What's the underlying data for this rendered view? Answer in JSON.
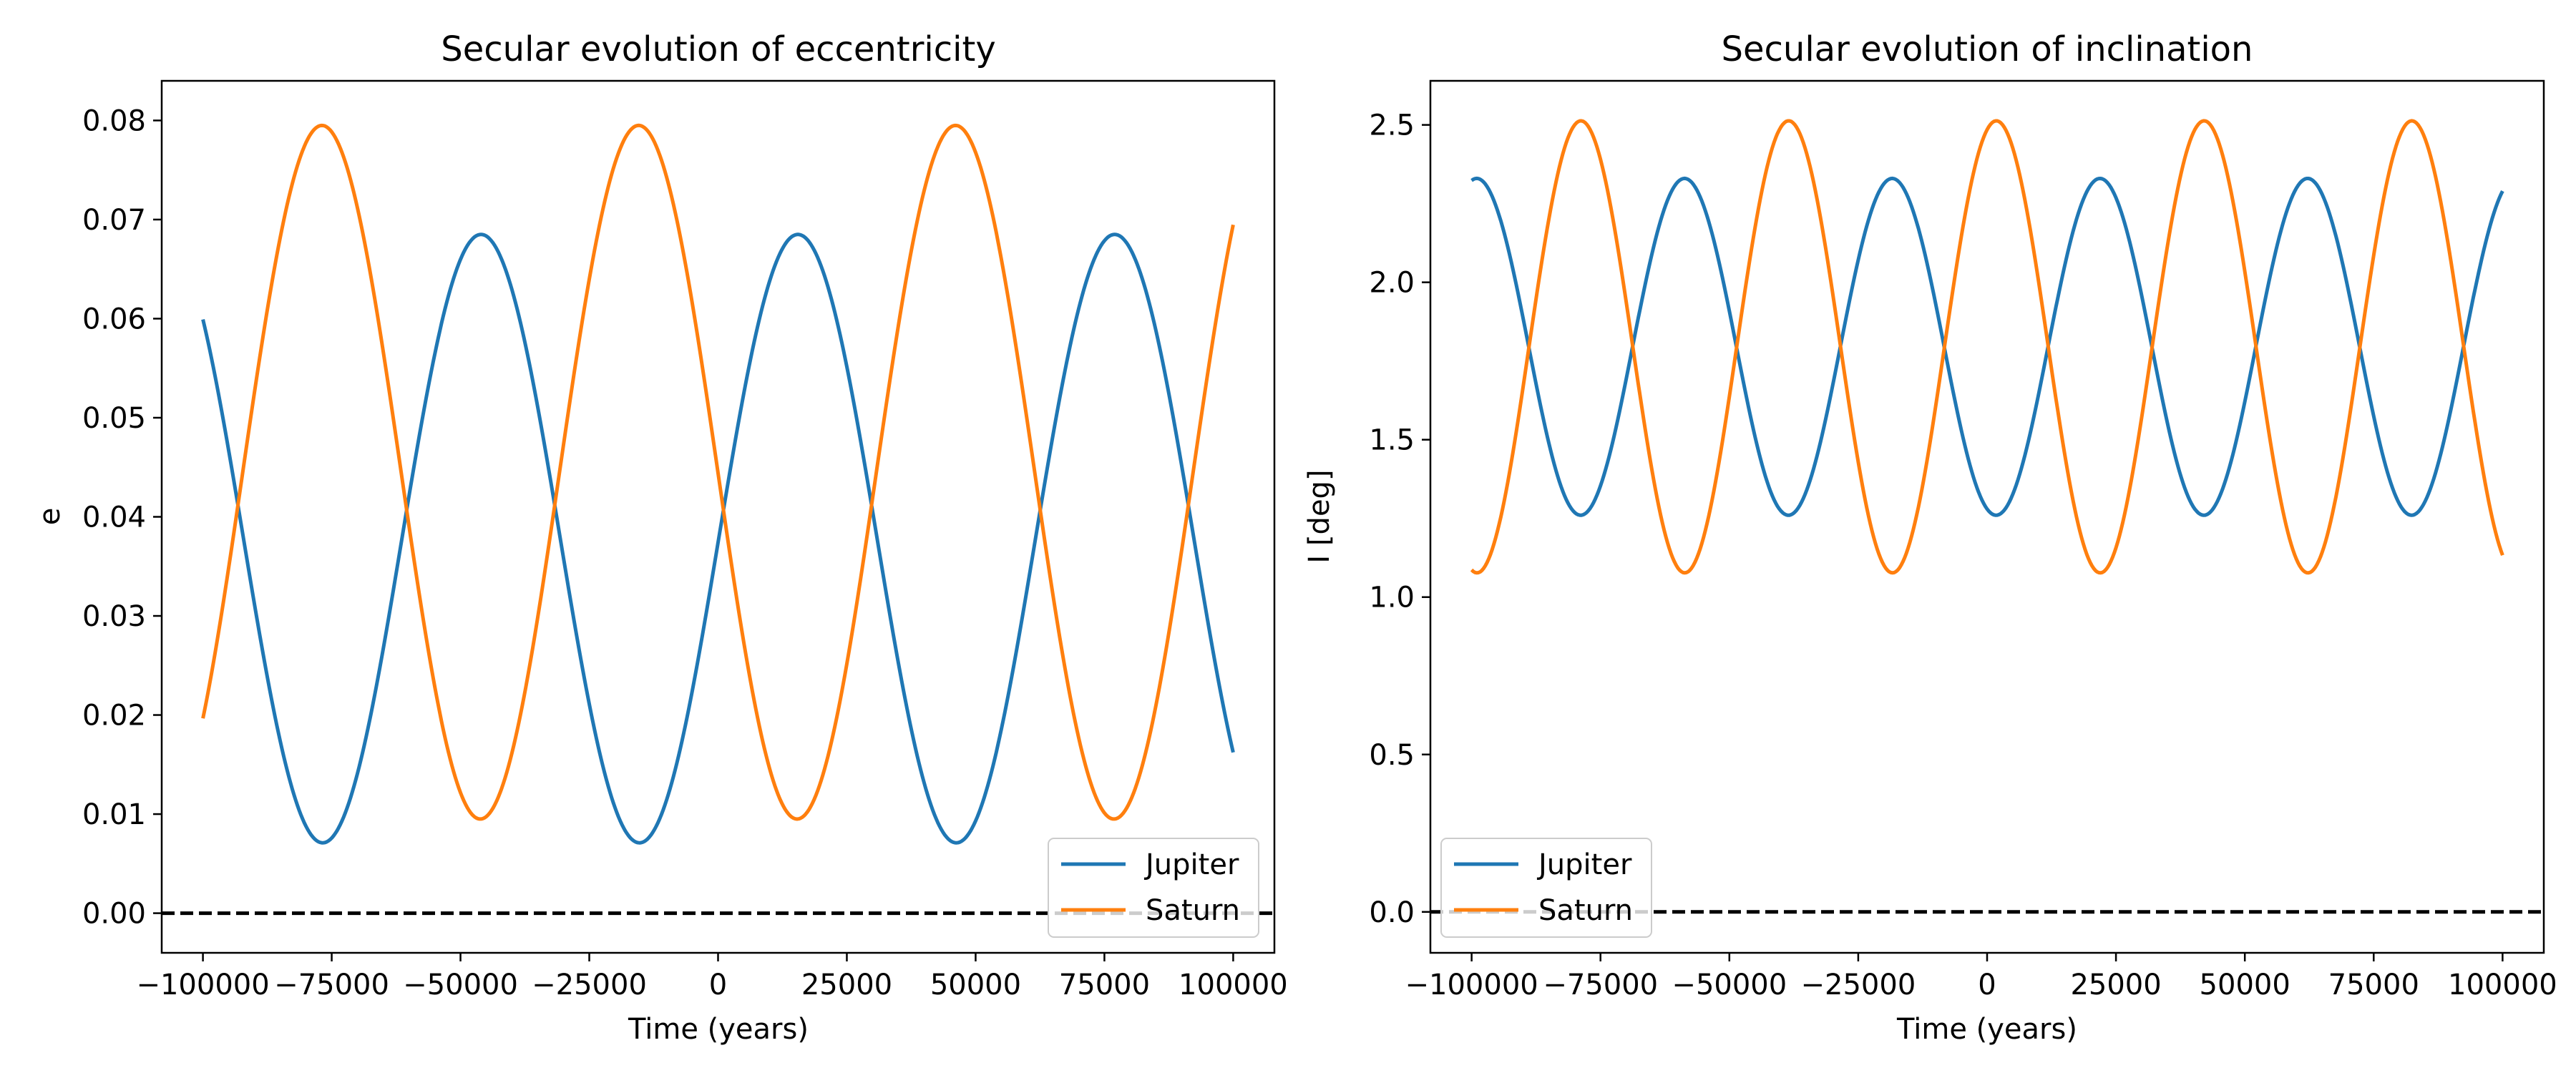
{
  "chart_data": [
    {
      "type": "line",
      "title": "Secular evolution of eccentricity",
      "xlabel": "Time (years)",
      "ylabel": "e",
      "xlim": [
        -108000,
        108000
      ],
      "ylim": [
        -0.004,
        0.084
      ],
      "xticks": [
        -100000,
        -75000,
        -50000,
        -25000,
        0,
        25000,
        50000,
        75000,
        100000
      ],
      "yticks": [
        0.0,
        0.01,
        0.02,
        0.03,
        0.04,
        0.05,
        0.06,
        0.07,
        0.08
      ],
      "ytick_labels": [
        "0.00",
        "0.01",
        "0.02",
        "0.03",
        "0.04",
        "0.05",
        "0.06",
        "0.07",
        "0.08"
      ],
      "grid": false,
      "legend_position": "lower-right",
      "reference_line": {
        "y": 0,
        "style": "dashed",
        "color": "#000000"
      },
      "x_range": [
        -100000,
        100000
      ],
      "series": [
        {
          "name": "Jupiter",
          "color": "#1f77b4",
          "mean": 0.0378,
          "amplitude": 0.0307,
          "period": 61500,
          "peak_at": -46000
        },
        {
          "name": "Saturn",
          "color": "#ff7f0e",
          "mean": 0.0445,
          "amplitude": 0.035,
          "period": 61500,
          "peak_at": -15400
        }
      ]
    },
    {
      "type": "line",
      "title": "Secular evolution of inclination",
      "xlabel": "Time (years)",
      "ylabel": "I [deg]",
      "xlim": [
        -108000,
        108000
      ],
      "ylim": [
        -0.13,
        2.64
      ],
      "xticks": [
        -100000,
        -75000,
        -50000,
        -25000,
        0,
        25000,
        50000,
        75000,
        100000
      ],
      "yticks": [
        0.0,
        0.5,
        1.0,
        1.5,
        2.0,
        2.5
      ],
      "ytick_labels": [
        "0.0",
        "0.5",
        "1.0",
        "1.5",
        "2.0",
        "2.5"
      ],
      "grid": false,
      "legend_position": "lower-left",
      "reference_line": {
        "y": 0,
        "style": "dashed",
        "color": "#000000"
      },
      "x_range": [
        -100000,
        100000
      ],
      "series": [
        {
          "name": "Jupiter",
          "color": "#1f77b4",
          "mean": 1.795,
          "amplitude": 0.535,
          "period": 40300,
          "peak_at": -99000
        },
        {
          "name": "Saturn",
          "color": "#ff7f0e",
          "mean": 1.795,
          "amplitude": 0.718,
          "period": 40300,
          "peak_at": -78800
        }
      ]
    }
  ]
}
